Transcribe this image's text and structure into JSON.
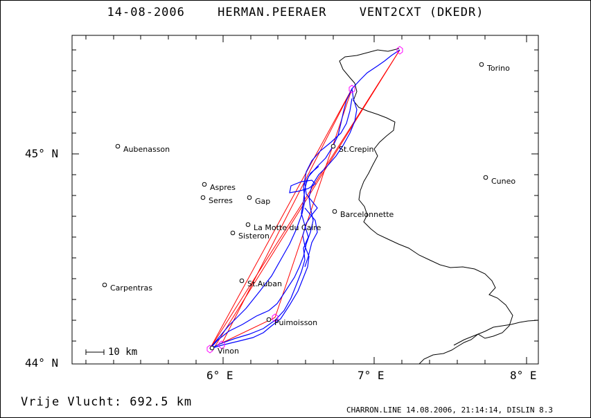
{
  "header": {
    "date": "14-08-2006",
    "pilot": "HERMAN.PEERAER",
    "glider": "VENT2CXT (DKEDR)"
  },
  "axes": {
    "lat_labels": [
      "45° N",
      "44° N"
    ],
    "lon_labels": [
      "6° E",
      "7° E",
      "8° E"
    ]
  },
  "places": [
    {
      "name": "Torino"
    },
    {
      "name": "Aubenasson"
    },
    {
      "name": "St.Crepin"
    },
    {
      "name": "Cuneo"
    },
    {
      "name": "Aspres"
    },
    {
      "name": "Serres"
    },
    {
      "name": "Gap"
    },
    {
      "name": "Barcelonnette"
    },
    {
      "name": "La Motte du Caire"
    },
    {
      "name": "Sisteron"
    },
    {
      "name": "Carpentras"
    },
    {
      "name": "St.Auban"
    },
    {
      "name": "Puimoisson"
    },
    {
      "name": "Vinon"
    }
  ],
  "scale": {
    "label": "10 km"
  },
  "footer": {
    "distance": "Vrije Vlucht:  692.5 km",
    "program": "CHARRON.LINE 14.08.2006, 21:14:14, DISLIN 8.3"
  },
  "colors": {
    "track": "#0000ff",
    "task": "#ff0000",
    "turnpoint": "#ff00ff",
    "border": "#000000"
  }
}
